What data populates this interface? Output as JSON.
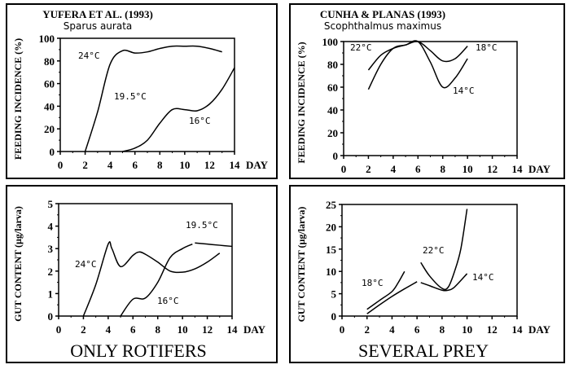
{
  "chart_data": [
    {
      "type": "line",
      "title": "YUFERA ET AL. (1993)",
      "subtitle": "Sparus  aurata",
      "xlabel": "DAY",
      "ylabel": "FEEDING INCIDENCE (%)",
      "xlim": [
        0,
        14
      ],
      "ylim": [
        0,
        100
      ],
      "xticks": [
        0,
        2,
        4,
        6,
        8,
        10,
        12,
        14
      ],
      "yticks": [
        0,
        20,
        40,
        60,
        80,
        100
      ],
      "grid": false,
      "annotations": [
        "24°C",
        "19.5°C",
        "16°C"
      ],
      "series": [
        {
          "name": "24°C",
          "x": [
            2,
            3,
            4,
            5,
            6,
            7,
            8,
            9,
            10,
            11,
            12,
            13
          ],
          "y": [
            0,
            35,
            77,
            89,
            87,
            88,
            91,
            93,
            93,
            93,
            91,
            88
          ]
        },
        {
          "name": "16°C",
          "x": [
            5,
            6,
            7,
            8,
            9,
            10,
            11,
            12,
            13,
            14
          ],
          "y": [
            0,
            3,
            10,
            25,
            37,
            37,
            36,
            42,
            55,
            74
          ]
        }
      ]
    },
    {
      "type": "line",
      "title": "CUNHA & PLANAS (1993)",
      "subtitle": "Scophthalmus   maximus",
      "xlabel": "DAY",
      "ylabel": "FEEDING INCIDENCE (%)",
      "xlim": [
        0,
        14
      ],
      "ylim": [
        0,
        100
      ],
      "xticks": [
        0,
        2,
        4,
        6,
        8,
        10,
        12,
        14
      ],
      "yticks": [
        0,
        20,
        40,
        60,
        80,
        100
      ],
      "grid": false,
      "annotations": [
        "22°C",
        "18°C",
        "14°C"
      ],
      "series": [
        {
          "name": "18°C",
          "x": [
            2,
            3,
            4,
            5,
            6,
            7,
            8,
            9,
            10
          ],
          "y": [
            75,
            88,
            94,
            97,
            100,
            92,
            83,
            85,
            96
          ]
        },
        {
          "name": "14°C",
          "x": [
            2,
            3,
            4,
            5,
            6,
            7,
            8,
            9,
            10
          ],
          "y": [
            58,
            80,
            94,
            97,
            100,
            82,
            60,
            68,
            85
          ]
        }
      ]
    },
    {
      "type": "line",
      "title": "",
      "caption": "ONLY ROTIFERS",
      "xlabel": "DAY",
      "ylabel": "GUT CONTENT (µg/larva)",
      "xlim": [
        0,
        14
      ],
      "ylim": [
        0,
        5
      ],
      "xticks": [
        0,
        2,
        4,
        6,
        8,
        10,
        12,
        14
      ],
      "yticks": [
        0,
        1,
        2,
        3,
        4,
        5
      ],
      "grid": false,
      "annotations": [
        "24°C",
        "19.5°C",
        "16°C"
      ],
      "series": [
        {
          "name": "24°C",
          "x": [
            2,
            3,
            4,
            4.3,
            5,
            6,
            6.5,
            7,
            8,
            9,
            10,
            11,
            12,
            13
          ],
          "y": [
            0,
            1.4,
            3.2,
            3.0,
            2.2,
            2.7,
            2.85,
            2.75,
            2.4,
            2.0,
            1.95,
            2.1,
            2.4,
            2.8
          ]
        },
        {
          "name": "16°C",
          "x": [
            5,
            6,
            7,
            8,
            9,
            10,
            10.8
          ],
          "y": [
            0,
            0.75,
            0.8,
            1.5,
            2.6,
            3.0,
            3.2
          ]
        },
        {
          "name": "19.5°C",
          "x": [
            11,
            12,
            13,
            14
          ],
          "y": [
            3.25,
            3.2,
            3.15,
            3.1
          ]
        }
      ]
    },
    {
      "type": "line",
      "title": "",
      "caption": "SEVERAL PREY",
      "xlabel": "DAY",
      "ylabel": "GUT CONTENT (µg/larva)",
      "xlim": [
        0,
        14
      ],
      "ylim": [
        0,
        25
      ],
      "xticks": [
        0,
        2,
        4,
        6,
        8,
        10,
        12,
        14
      ],
      "yticks": [
        0,
        5,
        10,
        15,
        20,
        25
      ],
      "grid": false,
      "annotations": [
        "18°C",
        "22°C",
        "14°C"
      ],
      "series": [
        {
          "name": "18°C",
          "x": [
            2,
            3,
            4,
            4.5,
            5
          ],
          "y": [
            1.5,
            3.5,
            5.5,
            7.5,
            10
          ]
        },
        {
          "name": "",
          "x": [
            2,
            3,
            4,
            5,
            6
          ],
          "y": [
            0.5,
            2.5,
            4.4,
            6.1,
            7.7
          ]
        },
        {
          "name": "22°C",
          "x": [
            6.3,
            7,
            8,
            8.5,
            9,
            9.5,
            10
          ],
          "y": [
            12,
            9,
            6.2,
            6.5,
            10,
            15,
            24
          ]
        },
        {
          "name": "14°C",
          "x": [
            6.3,
            7,
            8,
            8.5,
            9,
            10
          ],
          "y": [
            7.5,
            6.8,
            5.8,
            5.8,
            6.5,
            9.5
          ]
        }
      ]
    }
  ]
}
